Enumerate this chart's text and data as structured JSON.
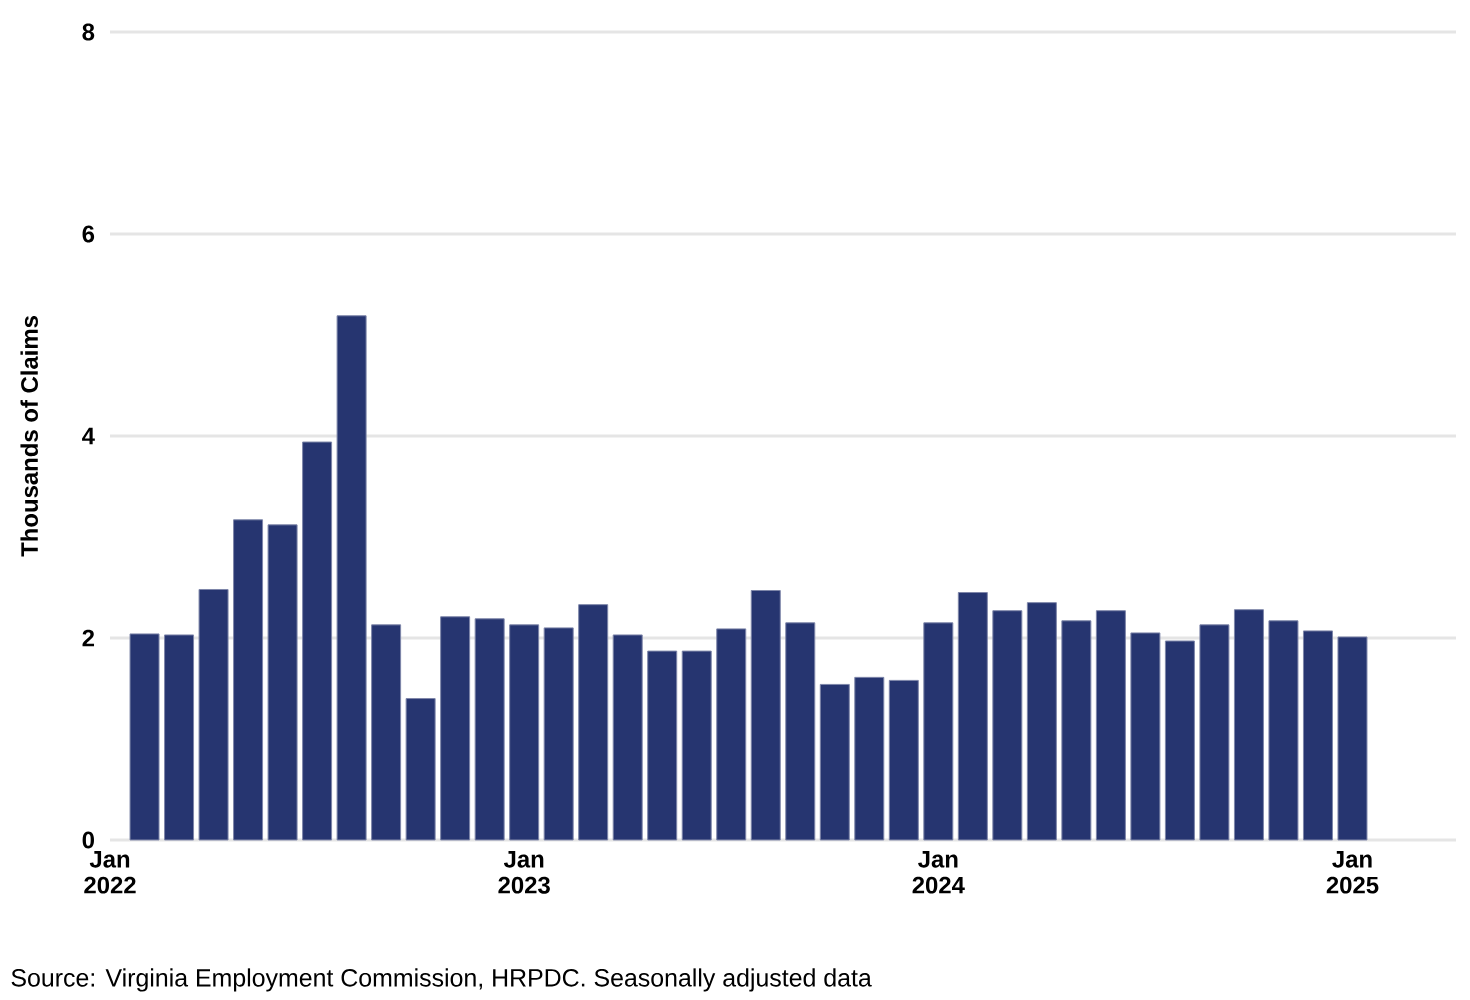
{
  "chart_data": {
    "type": "bar",
    "ylabel": "Thousands of Claims",
    "color": "#263570",
    "x": [
      "2022-02",
      "2022-03",
      "2022-04",
      "2022-05",
      "2022-06",
      "2022-07",
      "2022-08",
      "2022-09",
      "2022-10",
      "2022-11",
      "2022-12",
      "2023-01",
      "2023-02",
      "2023-03",
      "2023-04",
      "2023-05",
      "2023-06",
      "2023-07",
      "2023-08",
      "2023-09",
      "2023-10",
      "2023-11",
      "2023-12",
      "2024-01",
      "2024-02",
      "2024-03",
      "2024-04",
      "2024-05",
      "2024-06",
      "2024-07",
      "2024-08",
      "2024-09",
      "2024-10",
      "2024-11",
      "2024-12",
      "2025-01"
    ],
    "values": [
      2.04,
      2.03,
      2.48,
      3.17,
      3.12,
      3.94,
      5.19,
      2.13,
      1.4,
      2.21,
      2.19,
      2.13,
      2.1,
      2.33,
      2.03,
      1.87,
      1.87,
      2.09,
      2.47,
      2.15,
      1.54,
      1.61,
      1.58,
      2.15,
      2.45,
      2.27,
      2.35,
      2.17,
      2.27,
      2.05,
      1.97,
      2.13,
      2.28,
      2.17,
      2.07,
      2.01
    ],
    "xlim": [
      "2022-01",
      "2025-04"
    ],
    "xticks": [
      {
        "value": "2022-01",
        "label": "Jan 2022"
      },
      {
        "value": "2023-01",
        "label": "Jan 2023"
      },
      {
        "value": "2024-01",
        "label": "Jan 2024"
      },
      {
        "value": "2025-01",
        "label": "Jan 2025"
      }
    ],
    "ylim": [
      0,
      8
    ],
    "yticks": [
      0,
      2,
      4,
      6,
      8
    ],
    "grid": "y",
    "annotations": [
      "Source: Virginia Employment Commission, HRPDC. Seasonally adjusted data"
    ]
  }
}
